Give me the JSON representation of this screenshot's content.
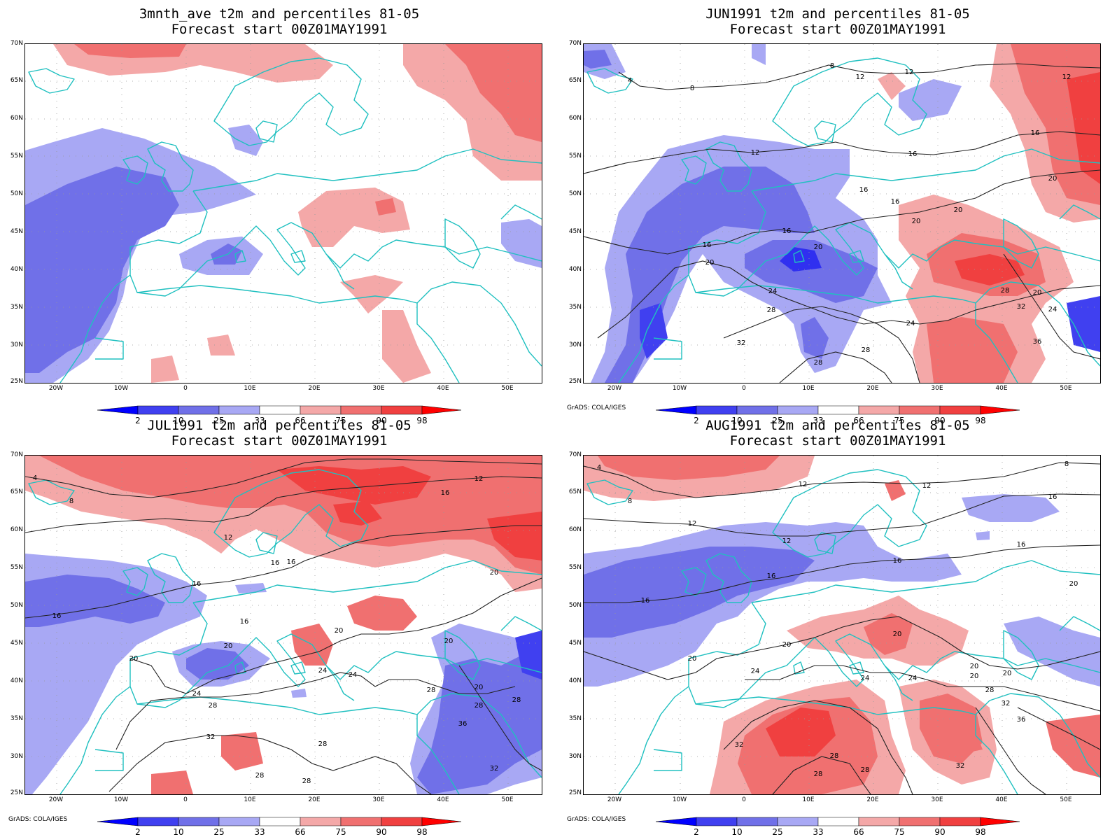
{
  "panels": [
    {
      "title1": "3mnth_ave t2m and percentiles 81-05",
      "title2": "Forecast start 00Z01MAY1991",
      "credit": ""
    },
    {
      "title1": "JUN1991 t2m and percentiles 81-05",
      "title2": "Forecast start 00Z01MAY1991",
      "credit": "GrADS: COLA/IGES"
    },
    {
      "title1": "JUL1991 t2m and percentiles 81-05",
      "title2": "Forecast start 00Z01MAY1991",
      "credit": "GrADS: COLA/IGES"
    },
    {
      "title1": "AUG1991 t2m and percentiles 81-05",
      "title2": "Forecast start 00Z01MAY1991",
      "credit": "GrADS: COLA/IGES"
    }
  ],
  "lat_labels": [
    "70N",
    "65N",
    "60N",
    "55N",
    "50N",
    "45N",
    "40N",
    "35N",
    "30N",
    "25N"
  ],
  "lon_labels": [
    "20W",
    "10W",
    "0",
    "10E",
    "20E",
    "30E",
    "40E",
    "50E"
  ],
  "colorbar": {
    "labels": [
      "2",
      "10",
      "25",
      "33",
      "66",
      "75",
      "90",
      "98"
    ],
    "colors": [
      "#0000ff",
      "#4040f0",
      "#7070e8",
      "#a8a8f4",
      "#ffffff",
      "#f4a8a8",
      "#f07070",
      "#f04040",
      "#ff0000"
    ]
  },
  "contour_labels": {
    "jun": [
      "4",
      "8",
      "8",
      "12",
      "12",
      "12",
      "12",
      "16",
      "16",
      "16",
      "16",
      "16",
      "20",
      "20",
      "20",
      "20",
      "20",
      "20",
      "24",
      "24",
      "24",
      "28",
      "28",
      "28",
      "28",
      "32",
      "32",
      "36",
      "16"
    ],
    "jul": [
      "4",
      "8",
      "12",
      "12",
      "16",
      "16",
      "16",
      "16",
      "16",
      "16",
      "20",
      "20",
      "20",
      "20",
      "20",
      "24",
      "24",
      "24",
      "28",
      "28",
      "28",
      "28",
      "32",
      "32",
      "36",
      "28",
      "28",
      "20",
      "28"
    ],
    "aug": [
      "4",
      "8",
      "8",
      "12",
      "12",
      "12",
      "12",
      "16",
      "16",
      "16",
      "16",
      "16",
      "20",
      "20",
      "20",
      "20",
      "20",
      "20",
      "24",
      "24",
      "24",
      "28",
      "28",
      "28",
      "28",
      "32",
      "32",
      "32",
      "36",
      "20"
    ]
  }
}
